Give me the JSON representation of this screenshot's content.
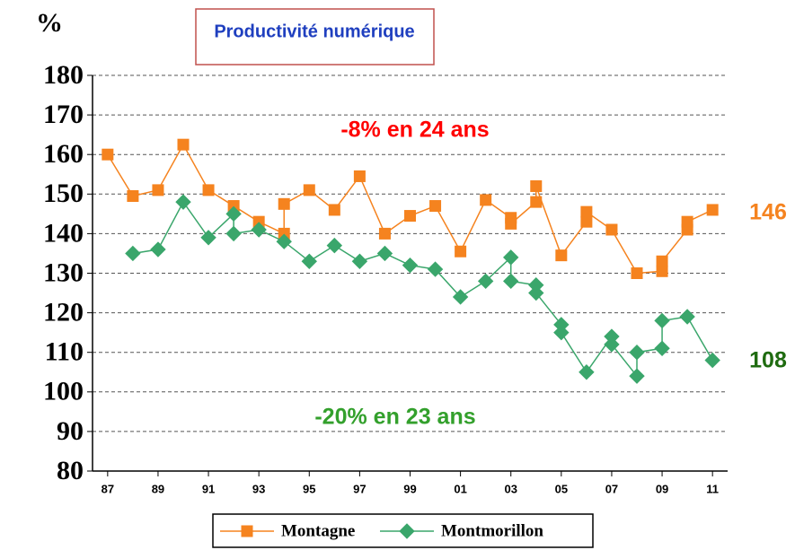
{
  "chart_data": {
    "type": "line",
    "title": "Productivité numérique",
    "y_label": "%",
    "annotations": [
      {
        "text": "-8% en 24 ans",
        "color": "#ff0000"
      },
      {
        "text": "-20% en 23 ans",
        "color": "#33a02c"
      },
      {
        "text": "146",
        "color": "#f5831f"
      },
      {
        "text": "108",
        "color": "#1f6b10"
      }
    ],
    "xlim": [
      1986.4,
      2011.6
    ],
    "xticks": [
      {
        "value": 1987,
        "label": "87"
      },
      {
        "value": 1989,
        "label": "89"
      },
      {
        "value": 1991,
        "label": "91"
      },
      {
        "value": 1993,
        "label": "93"
      },
      {
        "value": 1995,
        "label": "95"
      },
      {
        "value": 1997,
        "label": "97"
      },
      {
        "value": 1999,
        "label": "99"
      },
      {
        "value": 2001,
        "label": "01"
      },
      {
        "value": 2003,
        "label": "03"
      },
      {
        "value": 2005,
        "label": "05"
      },
      {
        "value": 2007,
        "label": "07"
      },
      {
        "value": 2009,
        "label": "09"
      },
      {
        "value": 2011,
        "label": "11"
      }
    ],
    "ylim": [
      80,
      180
    ],
    "yticks": [
      80,
      90,
      100,
      110,
      120,
      130,
      140,
      150,
      160,
      170,
      180
    ],
    "grid": true,
    "legend": "bottom",
    "series": [
      {
        "name": "Montagne",
        "color": "#f5831f",
        "marker": "square",
        "x": [
          1987,
          1988,
          1989,
          1990,
          1991,
          1992,
          1993,
          1994,
          1994,
          1995,
          1996,
          1997,
          1998,
          1999,
          2000,
          2001,
          2002,
          2003,
          2003,
          2004,
          2004,
          2005,
          2006,
          2006,
          2007,
          2008,
          2009,
          2009,
          2010,
          2010,
          2011
        ],
        "values": [
          160,
          149.5,
          151,
          162.5,
          151,
          147,
          143,
          140,
          147.5,
          151,
          146,
          154.5,
          140,
          144.5,
          147,
          135.5,
          148.5,
          144,
          142.5,
          148,
          152,
          134.5,
          143,
          145.5,
          141,
          130,
          130.5,
          133,
          141,
          143,
          146
        ]
      },
      {
        "name": "Montmorillon",
        "color": "#3aa66b",
        "marker": "diamond",
        "x": [
          1988,
          1989,
          1990,
          1991,
          1992,
          1992,
          1993,
          1994,
          1995,
          1996,
          1997,
          1998,
          1999,
          2000,
          2001,
          2002,
          2003,
          2003,
          2004,
          2004,
          2005,
          2005,
          2006,
          2007,
          2007,
          2008,
          2008,
          2009,
          2009,
          2010,
          2011
        ],
        "values": [
          135,
          136,
          148,
          139,
          145,
          140,
          141,
          138,
          133,
          137,
          133,
          135,
          132,
          131,
          124,
          128,
          134,
          128,
          127,
          125,
          117,
          115,
          105,
          114,
          112,
          104,
          110,
          111,
          118,
          119,
          108
        ]
      }
    ]
  }
}
